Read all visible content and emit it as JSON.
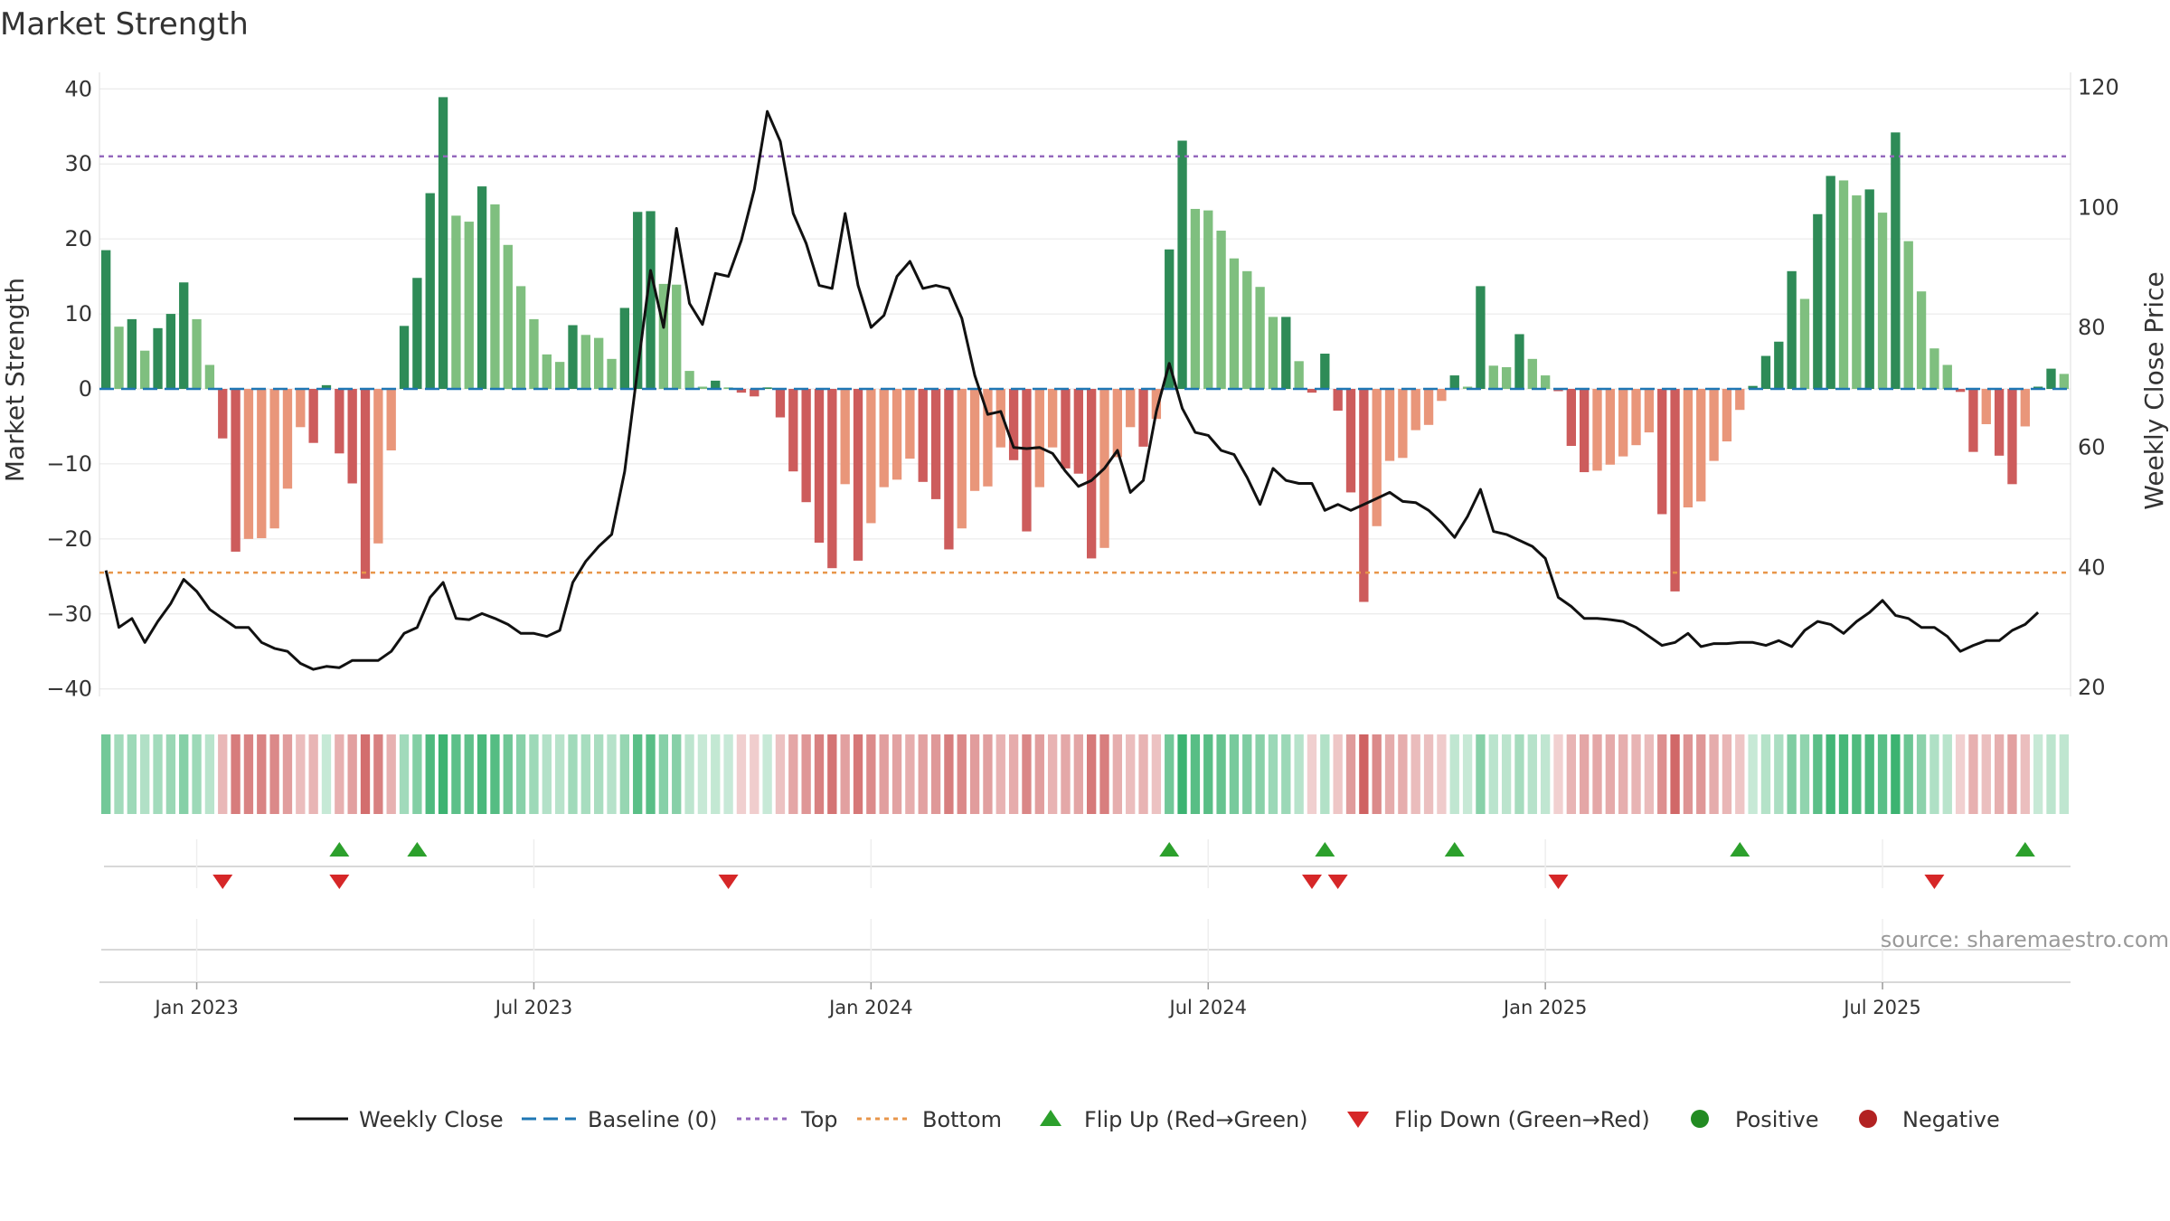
{
  "title": "Market Strength",
  "source": "source: sharemaestro.com",
  "colors": {
    "strong_positive": "#2e8b57",
    "weak_positive": "#7fbf7f",
    "strong_negative": "#cd5c5c",
    "weak_negative": "#e9967a",
    "line": "#111111",
    "baseline": "#1f77b4",
    "top": "#9467bd",
    "bottom": "#e8964a",
    "flip_up": "#2ca02c",
    "flip_down": "#d62728",
    "positive": "#228b22",
    "negative": "#b22222",
    "grid": "#e6e6e6"
  },
  "chart_data": {
    "type": "bar",
    "title": "Market Strength",
    "ylabel": "Market Strength",
    "y2label": "Weekly Close Price",
    "ylim": [
      -41,
      41
    ],
    "y2lim": [
      18.5,
      121
    ],
    "yticks": [
      "40",
      "30",
      "20",
      "10",
      "0",
      "−10",
      "−20",
      "−30",
      "−40"
    ],
    "y2ticks": [
      "120",
      "100",
      "80",
      "60",
      "40",
      "20"
    ],
    "xlabels": [
      "Jan 2023",
      "Jul 2023",
      "Jan 2024",
      "Jul 2024",
      "Jan 2025",
      "Jul 2025"
    ],
    "top_line": 31,
    "bottom_line": -24.5,
    "baseline": 0,
    "strength": [
      18.5,
      8.3,
      9.3,
      5.1,
      8.1,
      10.0,
      14.2,
      9.3,
      3.2,
      -6.6,
      -21.7,
      -20.0,
      -19.9,
      -18.6,
      -13.3,
      -5.1,
      -7.2,
      0.5,
      -8.6,
      -12.6,
      -25.3,
      -20.6,
      -8.2,
      8.4,
      14.8,
      26.1,
      38.9,
      23.1,
      22.3,
      27.0,
      24.6,
      19.2,
      13.7,
      9.3,
      4.6,
      3.6,
      8.5,
      7.2,
      6.8,
      4.0,
      10.8,
      23.6,
      23.7,
      14.0,
      13.9,
      2.4,
      0.3,
      1.1,
      0.2,
      -0.5,
      -1.0,
      0.2,
      -3.8,
      -11.0,
      -15.1,
      -20.5,
      -23.9,
      -12.7,
      -22.9,
      -17.9,
      -13.1,
      -12.1,
      -9.3,
      -12.4,
      -14.7,
      -21.4,
      -18.6,
      -13.6,
      -13.0,
      -7.8,
      -9.5,
      -19.0,
      -13.1,
      -7.8,
      -10.6,
      -11.3,
      -22.6,
      -21.2,
      -9.1,
      -5.1,
      -7.7,
      -4.0,
      18.6,
      33.1,
      24.0,
      23.8,
      21.1,
      17.4,
      15.7,
      13.6,
      9.6,
      9.6,
      3.7,
      -0.5,
      4.7,
      -2.9,
      -13.8,
      -28.4,
      -18.3,
      -9.6,
      -9.2,
      -5.5,
      -4.8,
      -1.6,
      1.8,
      0.3,
      13.7,
      3.1,
      2.9,
      7.3,
      4.0,
      1.8,
      -0.3,
      -7.6,
      -11.1,
      -10.9,
      -10.1,
      -9.0,
      -7.5,
      -5.8,
      -16.7,
      -27.0,
      -15.8,
      -15.0,
      -9.6,
      -7.0,
      -2.8,
      0.4,
      4.4,
      6.3,
      15.7,
      12.0,
      23.3,
      28.4,
      27.8,
      25.8,
      26.6,
      23.5,
      34.2,
      19.7,
      13.0,
      5.4,
      3.2,
      -0.4,
      -8.4,
      -4.7,
      -8.9,
      -12.7,
      -5.0,
      0.3,
      2.7,
      2.0
    ],
    "weekly_close": [
      39.5,
      30.0,
      31.5,
      27.5,
      31.0,
      34.0,
      38.0,
      36.0,
      33.0,
      31.5,
      30.0,
      30.0,
      27.5,
      26.5,
      26.0,
      24.0,
      23.0,
      23.5,
      23.3,
      24.5,
      24.5,
      24.5,
      26.0,
      29.0,
      30.0,
      35.0,
      37.5,
      31.5,
      31.3,
      32.3,
      31.5,
      30.5,
      29.0,
      29.0,
      28.5,
      29.5,
      37.5,
      41.0,
      43.5,
      45.5,
      56.0,
      73.0,
      89.5,
      80.0,
      96.5,
      84.0,
      80.5,
      89.0,
      88.5,
      94.5,
      103.0,
      116.0,
      111.0,
      99.0,
      94.0,
      87.0,
      86.5,
      99.0,
      87.0,
      80.0,
      82.0,
      88.5,
      91.0,
      86.5,
      87.0,
      86.5,
      81.5,
      72.0,
      65.5,
      66.0,
      60.0,
      59.8,
      60.0,
      59.0,
      56.0,
      53.5,
      54.5,
      56.5,
      59.5,
      52.5,
      54.5,
      66.0,
      74.0,
      66.5,
      62.5,
      62.0,
      59.5,
      58.8,
      55.0,
      50.5,
      56.5,
      54.5,
      54.0,
      54.0,
      49.5,
      50.5,
      49.5,
      50.5,
      51.5,
      52.5,
      51.0,
      50.8,
      49.5,
      47.5,
      45.0,
      48.5,
      53.0,
      46.0,
      45.5,
      44.5,
      43.5,
      41.5,
      35.0,
      33.5,
      31.5,
      31.5,
      31.3,
      31.0,
      30.0,
      28.5,
      27.0,
      27.5,
      29.0,
      26.8,
      27.3,
      27.3,
      27.5,
      27.5,
      27.0,
      27.8,
      26.8,
      29.5,
      31.0,
      30.5,
      29.0,
      31.0,
      32.5,
      34.5,
      32.0,
      31.5,
      30.0,
      30.0,
      28.5,
      26.0,
      27.0,
      27.8,
      27.8,
      29.5,
      30.5,
      32.5
    ],
    "flip_up": [
      18,
      24,
      82,
      94,
      104,
      126,
      148
    ],
    "flip_down": [
      9,
      18,
      48,
      93,
      95,
      112,
      141
    ],
    "legend": [
      "Weekly Close",
      "Baseline (0)",
      "Top",
      "Bottom",
      "Flip Up (Red→Green)",
      "Flip Down (Green→Red)",
      "Positive",
      "Negative"
    ]
  }
}
